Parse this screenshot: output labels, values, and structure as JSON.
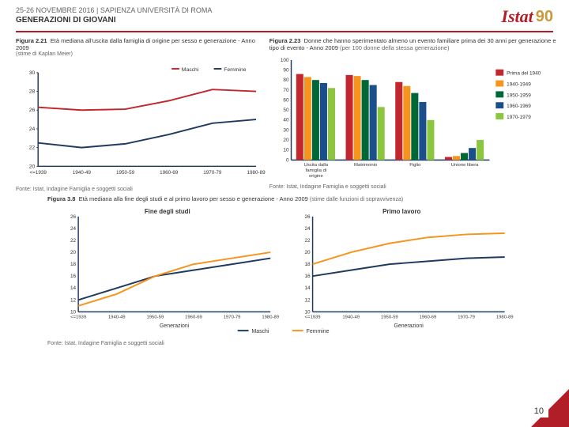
{
  "header": {
    "date_line": "25-26 NOVEMBRE 2016 | SAPIENZA UNIVERSITÀ DI ROMA",
    "title": "GENERAZIONI DI GIOVANI"
  },
  "logo": {
    "brand": "Istat",
    "anniv": "90"
  },
  "page_number": "10",
  "fig221": {
    "title_bold": "Figura 2.21",
    "title_rest": "Età mediana all'uscita dalla famiglia di origine per sesso e generazione - Anno 2009",
    "subtitle": "(stime di Kaplan Meier)",
    "fonte": "Fonte: Istat, Indagine Famiglia e soggetti sociali",
    "type": "line",
    "categories": [
      "<=1939",
      "1940-49",
      "1950-59",
      "1960-69",
      "1970-79",
      "1980-89"
    ],
    "ylim": [
      20,
      30
    ],
    "ytick_step": 2,
    "series": [
      {
        "name": "Maschi",
        "color": "#c1272d",
        "values": [
          26.3,
          26.0,
          26.1,
          27.0,
          28.2,
          28.0
        ]
      },
      {
        "name": "Femmine",
        "color": "#1f3a5f",
        "values": [
          22.5,
          22.0,
          22.4,
          23.4,
          24.6,
          25.0
        ]
      }
    ],
    "axis_color": "#1f3a5f",
    "line_width": 2
  },
  "fig223": {
    "title_bold": "Figura 2.23",
    "title_rest": "Donne che hanno sperimentato almeno un evento familiare prima dei 30 anni per generazione e tipo di evento - Anno 2009",
    "subtitle": "(per 100 donne della stessa generazione)",
    "fonte": "Fonte: Istat, Indagine Famiglia e soggetti sociali",
    "type": "grouped-bar",
    "groups": [
      "Uscita dalla famiglia di origine",
      "Matrimonio",
      "Figlio",
      "Unione libera"
    ],
    "ylim": [
      0,
      100
    ],
    "ytick_step": 10,
    "series": [
      {
        "name": "Prima del 1940",
        "color": "#c1272d",
        "values": [
          86,
          85,
          78,
          3
        ]
      },
      {
        "name": "1940-1949",
        "color": "#f7941d",
        "values": [
          83,
          84,
          74,
          4
        ]
      },
      {
        "name": "1950-1959",
        "color": "#006837",
        "values": [
          80,
          80,
          67,
          7
        ]
      },
      {
        "name": "1960-1969",
        "color": "#1b4f8b",
        "values": [
          77,
          75,
          58,
          12
        ]
      },
      {
        "name": "1970-1979",
        "color": "#8cc63f",
        "values": [
          72,
          53,
          40,
          20
        ]
      }
    ],
    "axis_color": "#1f3a5f"
  },
  "fig38": {
    "title_bold": "Figura 3.8",
    "title_rest": "Età mediana alla fine degli studi e al primo lavoro per sesso e generazione - Anno 2009",
    "subtitle": "(stime dalle funzioni di sopravvivenza)",
    "fonte": "Fonte: Istat, Indagine Famiglia e soggetti sociali",
    "type": "line-panels",
    "panels": [
      {
        "title": "Fine degli studi",
        "categories": [
          "<=1939",
          "1940-49",
          "1950-59",
          "1960-69",
          "1970-79",
          "1980-89"
        ],
        "series": [
          {
            "name": "Maschi",
            "color": "#1f3a5f",
            "values": [
              12,
              14,
              16,
              17,
              18,
              19
            ]
          },
          {
            "name": "Femmine",
            "color": "#f7941d",
            "values": [
              11,
              13,
              16,
              18,
              19,
              20
            ]
          }
        ]
      },
      {
        "title": "Primo lavoro",
        "categories": [
          "<=1939",
          "1940-49",
          "1950-59",
          "1960-69",
          "1970-79",
          "1980-89"
        ],
        "series": [
          {
            "name": "Maschi",
            "color": "#1f3a5f",
            "values": [
              16,
              17,
              18,
              18.5,
              19,
              19.2
            ]
          },
          {
            "name": "Femmine",
            "color": "#f7941d",
            "values": [
              18,
              20,
              21.5,
              22.5,
              23,
              23.2
            ]
          }
        ]
      }
    ],
    "ylim": [
      10,
      26
    ],
    "ytick_step": 2,
    "xlabel": "Generazioni",
    "legend": [
      "Maschi",
      "Femmine"
    ],
    "legend_colors": [
      "#1f3a5f",
      "#f7941d"
    ],
    "axis_color": "#1f3a5f",
    "line_width": 2
  }
}
